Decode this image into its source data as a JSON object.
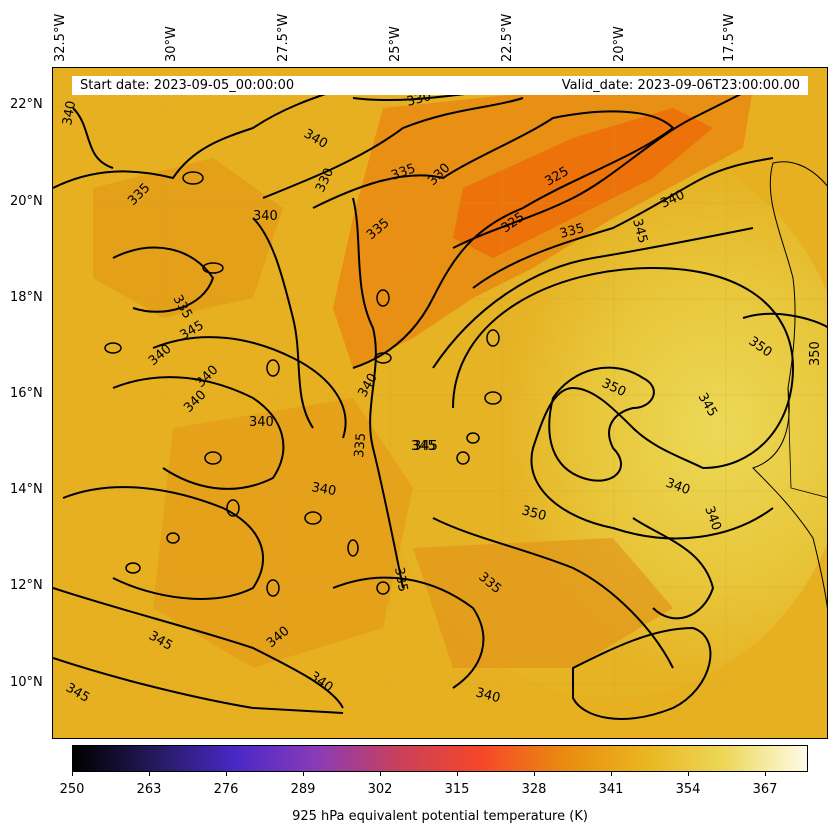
{
  "header": {
    "start_date": "Start date: 2023-09-05_00:00:00",
    "valid_date": "Valid_date: 2023-09-06T23:00:00.00"
  },
  "map": {
    "lon_labels": [
      "32.5°W",
      "30°W",
      "27.5°W",
      "25°W",
      "22.5°W",
      "20°W",
      "17.5°W"
    ],
    "lat_labels": [
      "22°N",
      "20°N",
      "18°N",
      "16°N",
      "14°N",
      "12°N",
      "10°N"
    ],
    "contour_labels": [
      "330",
      "340",
      "335",
      "330",
      "340",
      "335",
      "340",
      "330",
      "325",
      "325",
      "335",
      "340",
      "345",
      "350",
      "350",
      "345",
      "340",
      "340",
      "350",
      "345",
      "335",
      "340",
      "335",
      "340",
      "335",
      "340",
      "345",
      "340",
      "340",
      "345",
      "340",
      "335",
      "345",
      "340",
      "340",
      "345",
      "335",
      "340",
      "350"
    ],
    "fill_colors": {
      "warm": "#e08a10",
      "hot": "#ec6e08",
      "mid": "#e8a814",
      "cool": "#edd24a"
    },
    "contour_color": "#000000"
  },
  "colorbar": {
    "ticks": [
      "250",
      "263",
      "276",
      "289",
      "302",
      "315",
      "328",
      "341",
      "354",
      "367"
    ],
    "label": "925 hPa equivalent potential temperature (K)",
    "colormap": [
      "#000000",
      "#241a5c",
      "#4a28c8",
      "#8b3bb8",
      "#c9405a",
      "#f7462a",
      "#e98a10",
      "#eab51e",
      "#edd85a",
      "#fffbe8"
    ]
  }
}
